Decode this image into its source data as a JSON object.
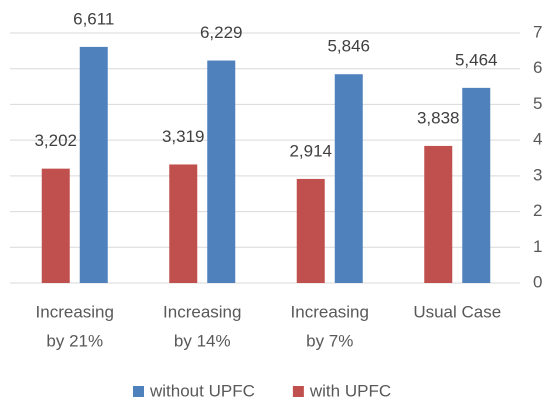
{
  "chart_data": {
    "type": "bar",
    "categories": [
      [
        "Increasing",
        "by 21%"
      ],
      [
        "Increasing",
        "by 14%"
      ],
      [
        "Increasing",
        "by 7%"
      ],
      [
        "Usual Case"
      ]
    ],
    "series": [
      {
        "name": "without UPFC",
        "color": "#4f81bd",
        "values": [
          6.611,
          6.229,
          5.846,
          5.464
        ],
        "value_labels": [
          "6,611",
          "6,229",
          "5,846",
          "5,464"
        ]
      },
      {
        "name": "with UPFC",
        "color": "#c0504d",
        "values": [
          3.202,
          3.319,
          2.914,
          3.838
        ],
        "value_labels": [
          "3,202",
          "3,319",
          "2,914",
          "3,838"
        ]
      }
    ],
    "ylim": [
      0,
      7
    ],
    "yticks": [
      0,
      1,
      2,
      3,
      4,
      5,
      6,
      7
    ],
    "grid": true,
    "legend": "bottom"
  }
}
